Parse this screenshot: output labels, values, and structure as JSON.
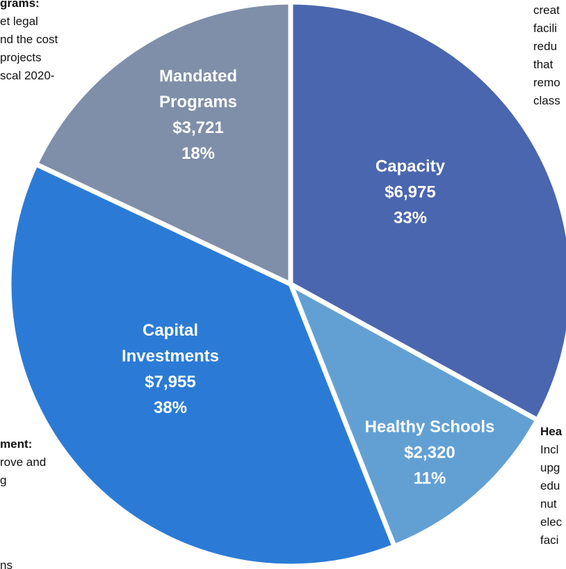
{
  "chart_data": {
    "type": "pie",
    "categories": [
      "Capacity",
      "Healthy Schools",
      "Capital Investments",
      "Mandated Programs"
    ],
    "values": [
      33,
      11,
      38,
      18
    ],
    "value_labels": [
      "33%",
      "11%",
      "38%",
      "18%"
    ],
    "amounts": [
      6975,
      2320,
      7955,
      3721
    ],
    "amount_labels": [
      "$6,975",
      "$2,320",
      "$7,955",
      "$3,721"
    ],
    "colors": [
      "#4a66ae",
      "#62a0d4",
      "#2b7bd6",
      "#7f8fa9"
    ],
    "annotations": [
      {
        "bold": "grams:",
        "lines": [
          "et legal",
          "nd the cost",
          "projects",
          "scal 2020-"
        ]
      },
      {
        "bold": "",
        "lines": [
          "creat",
          "facili",
          "redu",
          "that",
          "remo",
          "class"
        ]
      },
      {
        "bold": "Hea",
        "lines": [
          "Incl",
          "upg",
          "edu",
          "nut",
          "elec",
          "faci"
        ]
      },
      {
        "bold": "ment:",
        "lines": [
          "rove and",
          "g"
        ]
      },
      {
        "bold": "",
        "lines": [
          "ns"
        ]
      }
    ]
  }
}
